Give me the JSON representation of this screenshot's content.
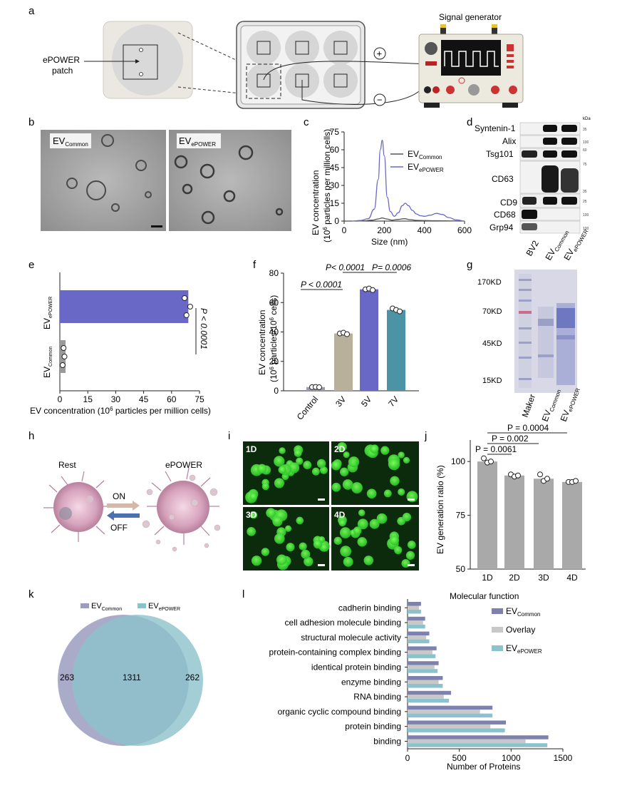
{
  "panel_letters": [
    "a",
    "b",
    "c",
    "d",
    "e",
    "f",
    "g",
    "h",
    "i",
    "j",
    "k",
    "l"
  ],
  "panel_a": {
    "patch_label_1": "ePOWER",
    "patch_label_2": "patch",
    "signal_generator": "Signal generator",
    "plus": "+",
    "minus": "−"
  },
  "panel_b": {
    "label_common_main": "EV",
    "label_common_sub": "Common",
    "label_epower_main": "EV",
    "label_epower_sub": "ePOWER"
  },
  "panel_d": {
    "proteins": [
      "Syntenin-1",
      "Alix",
      "Tsg101",
      "CD63",
      "CD9",
      "CD68",
      "Grp94"
    ],
    "kda_label": "kDa",
    "markers": [
      "35",
      "100",
      "60",
      "75",
      "35",
      "25",
      "100",
      "100"
    ],
    "lanes": [
      {
        "main": "BV2",
        "sub": ""
      },
      {
        "main": "EV",
        "sub": "Common"
      },
      {
        "main": "EV",
        "sub": "ePOWER"
      }
    ]
  },
  "panel_g": {
    "markers": [
      "170KD",
      "70KD",
      "45KD",
      "15KD"
    ],
    "lanes": [
      {
        "main": "Maker",
        "sub": ""
      },
      {
        "main": "EV",
        "sub": "Common"
      },
      {
        "main": "EV",
        "sub": "ePOWER"
      }
    ]
  },
  "panel_h": {
    "rest": "Rest",
    "epower": "ePOWER",
    "on": "ON",
    "off": "OFF"
  },
  "panel_i": {
    "tiles": [
      "1D",
      "2D",
      "3D",
      "4D"
    ]
  },
  "panel_k": {
    "type": "venn",
    "legend": [
      {
        "main": "EV",
        "sub": "Common",
        "color": "#9b9cc0"
      },
      {
        "main": "EV",
        "sub": "ePOWER",
        "color": "#8cc2cc"
      }
    ],
    "only_common": "263",
    "overlap": "1311",
    "only_epower": "262"
  },
  "chart_data": [
    {
      "panel": "c",
      "type": "line",
      "xlabel": "Size (nm)",
      "ylabel_1": "EV concentration",
      "ylabel_2": "(10",
      "ylabel_2_sup": "6",
      "ylabel_2_tail": " particles per million cells)",
      "xlim": [
        0,
        600
      ],
      "ylim": [
        0,
        75
      ],
      "xticks": [
        "0",
        "200",
        "400",
        "600"
      ],
      "yticks": [
        "0",
        "15",
        "30",
        "45",
        "60",
        "75"
      ],
      "series": [
        {
          "name_main": "EV",
          "name_sub": "Common",
          "color": "#555555",
          "x": [
            50,
            100,
            140,
            170,
            190,
            210,
            240,
            270,
            300,
            330,
            360,
            400,
            450,
            500,
            550,
            600
          ],
          "y": [
            0,
            0.2,
            0.8,
            1.8,
            2.6,
            1.8,
            0.8,
            1.4,
            2.0,
            1.2,
            0.6,
            0.4,
            0.3,
            0.2,
            0.1,
            0
          ]
        },
        {
          "name_main": "EV",
          "name_sub": "ePOWER",
          "color": "#6a68c6",
          "x": [
            40,
            80,
            120,
            150,
            170,
            180,
            190,
            200,
            215,
            230,
            250,
            270,
            290,
            305,
            320,
            340,
            360,
            380,
            400,
            430,
            460,
            490,
            520,
            560,
            600
          ],
          "y": [
            0,
            0.5,
            2,
            10,
            35,
            60,
            68,
            55,
            20,
            8,
            4,
            7,
            13,
            15,
            13,
            9,
            6,
            4.5,
            4,
            5,
            6.5,
            5.5,
            3,
            1,
            0
          ]
        }
      ]
    },
    {
      "panel": "e",
      "type": "bar",
      "orientation": "horizontal",
      "xlabel": "EV concentration (10",
      "xlabel_sup": "6",
      "xlabel_tail": " particles per million cells)",
      "categories": [
        {
          "main": "EV",
          "sub": "ePOWER"
        },
        {
          "main": "EV",
          "sub": "Common"
        }
      ],
      "values": [
        69,
        2
      ],
      "points": [
        [
          67,
          70,
          68
        ],
        [
          2,
          2.5,
          1.5
        ]
      ],
      "colors": [
        "#6a68c6",
        "#9a9a9a"
      ],
      "xlim": [
        0,
        75
      ],
      "xticks": [
        "0",
        "15",
        "30",
        "45",
        "60",
        "75"
      ],
      "pvalue": "P < 0.0001"
    },
    {
      "panel": "f",
      "type": "bar",
      "ylabel_1": "EV concentration",
      "ylabel_2": "(10",
      "ylabel_2_sup": "6",
      "ylabel_2_tail": " particles/10",
      "ylabel_2_sup2": "6",
      "ylabel_2_tail2": " cells)",
      "categories": [
        "Control",
        "3V",
        "5V",
        "7V"
      ],
      "values": [
        2.5,
        39,
        69,
        55
      ],
      "points": [
        [
          2.5,
          2.6,
          2.4
        ],
        [
          39,
          39.5,
          38.5
        ],
        [
          69,
          69.5,
          68.5
        ],
        [
          56,
          55,
          54
        ]
      ],
      "colors": [
        "#9b9bb0",
        "#b8b09a",
        "#6a68c6",
        "#4d93a6"
      ],
      "ylim": [
        0,
        80
      ],
      "yticks": [
        "0",
        "20",
        "40",
        "60",
        "80"
      ],
      "brackets": [
        {
          "from": 0,
          "to": 1,
          "label": "P < 0.0001"
        },
        {
          "from": 1,
          "to": 2,
          "label": "P< 0.0001"
        },
        {
          "from": 2,
          "to": 3,
          "label": "P= 0.0006"
        }
      ]
    },
    {
      "panel": "j",
      "type": "bar",
      "ylabel": "EV generation ratio (%)",
      "categories": [
        "1D",
        "2D",
        "3D",
        "4D"
      ],
      "values": [
        100,
        93.5,
        92,
        90.5
      ],
      "points": [
        [
          101.5,
          99.5,
          100
        ],
        [
          94,
          93,
          93.5
        ],
        [
          94,
          91,
          92
        ],
        [
          90.5,
          90.5,
          91
        ]
      ],
      "ylim": [
        50,
        110
      ],
      "yticks": [
        "50",
        "75",
        "100"
      ],
      "brackets": [
        {
          "from": 0,
          "to": 1,
          "label": "P = 0.0061"
        },
        {
          "from": 0,
          "to": 2,
          "label": "P = 0.002"
        },
        {
          "from": 0,
          "to": 3,
          "label": "P = 0.0004"
        }
      ]
    },
    {
      "panel": "l",
      "type": "bar",
      "orientation": "horizontal",
      "title": "Molecular function",
      "xlabel": "Number of Proteins",
      "categories": [
        "cadherin binding",
        "cell adhesion molecule binding",
        "structural molecule activity",
        "protein-containing complex binding",
        "identical protein binding",
        "enzyme binding",
        "RNA binding",
        "organic cyclic compound binding",
        "protein binding",
        "binding"
      ],
      "xlim": [
        0,
        1500
      ],
      "xticks": [
        "0",
        "500",
        "1000",
        "1500"
      ],
      "series": [
        {
          "name_main": "EV",
          "name_sub": "Common",
          "color": "#7e81ad",
          "values": [
            130,
            170,
            210,
            280,
            300,
            340,
            420,
            820,
            950,
            1360
          ]
        },
        {
          "name_main": "Overlay",
          "name_sub": "",
          "color": "#c8c8c8",
          "values": [
            110,
            150,
            180,
            240,
            260,
            300,
            350,
            700,
            800,
            1140
          ]
        },
        {
          "name_main": "EV",
          "name_sub": "ePOWER",
          "color": "#8cc2cc",
          "values": [
            130,
            170,
            210,
            270,
            290,
            340,
            400,
            820,
            940,
            1350
          ]
        }
      ]
    }
  ]
}
